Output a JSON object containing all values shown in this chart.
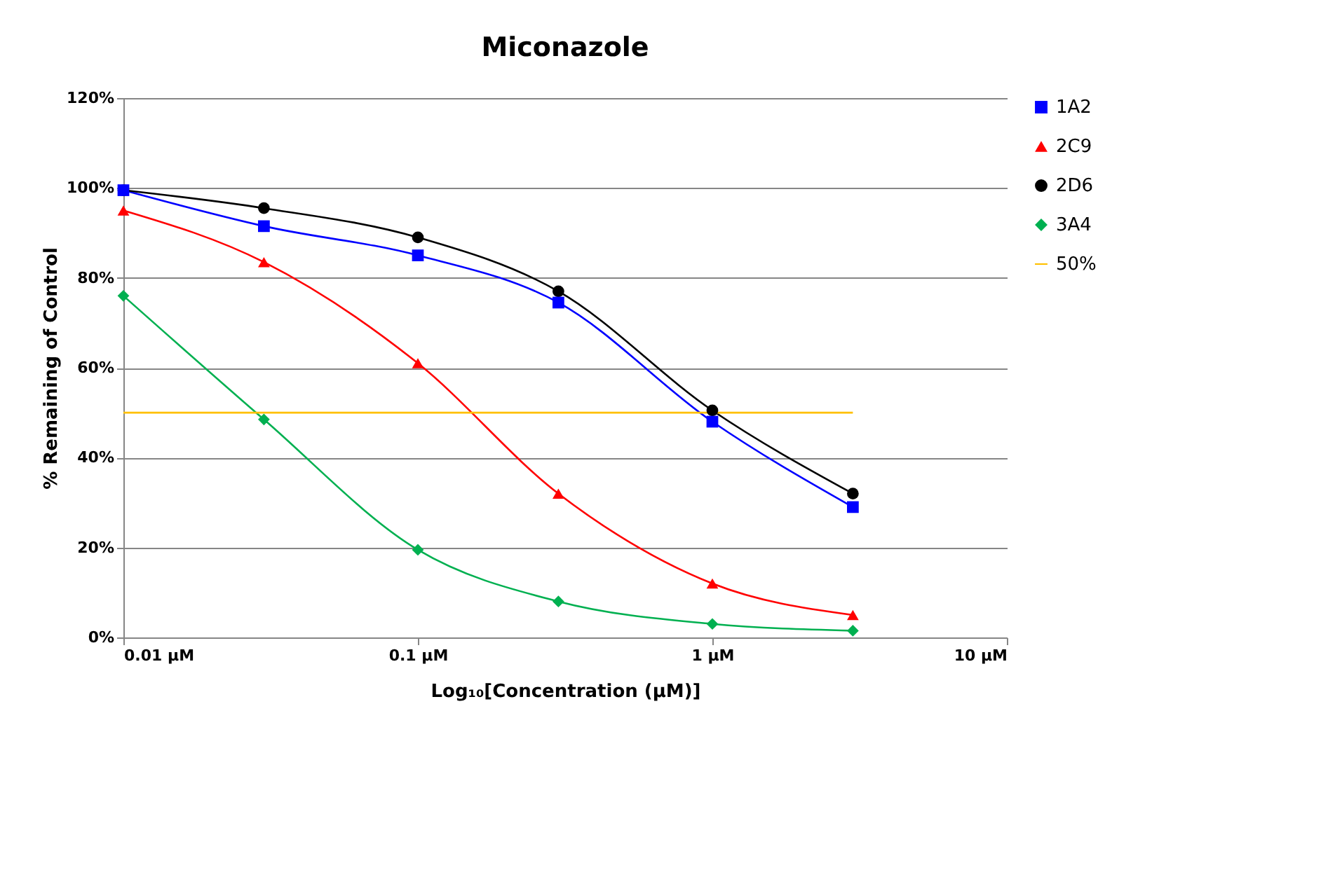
{
  "chart_data": {
    "type": "line",
    "title": "Miconazole",
    "xlabel": "Log₁₀[Concentration (µM)]",
    "ylabel": "% Remaining of Control",
    "log": "x",
    "xlim": [
      0.01,
      10
    ],
    "xticks": [
      {
        "value": 0.01,
        "label": "0.01 µM"
      },
      {
        "value": 0.1,
        "label": "0.1 µM"
      },
      {
        "value": 1,
        "label": "1 µM"
      },
      {
        "value": 10,
        "label": "10 µM"
      }
    ],
    "ylim": [
      0,
      120
    ],
    "yticks": [
      {
        "value": 0,
        "label": "0%"
      },
      {
        "value": 20,
        "label": "20%"
      },
      {
        "value": 40,
        "label": "40%"
      },
      {
        "value": 60,
        "label": "60%"
      },
      {
        "value": 80,
        "label": "80%"
      },
      {
        "value": 100,
        "label": "100%"
      },
      {
        "value": 120,
        "label": "120%"
      }
    ],
    "grid": "y",
    "legend": "right",
    "x": [
      0.01,
      0.03,
      0.1,
      0.3,
      1,
      3
    ],
    "series": [
      {
        "name": "1A2",
        "color": "#0000ff",
        "marker": "square",
        "values": [
          99.5,
          91.5,
          85,
          74.5,
          48,
          29
        ]
      },
      {
        "name": "2C9",
        "color": "#ff0000",
        "marker": "triangle",
        "values": [
          95,
          83.5,
          61,
          32,
          12,
          5
        ]
      },
      {
        "name": "2D6",
        "color": "#000000",
        "marker": "circle",
        "values": [
          99.5,
          95.5,
          89,
          77,
          50.5,
          32
        ]
      },
      {
        "name": "3A4",
        "color": "#00b050",
        "marker": "diamond",
        "values": [
          76,
          48.5,
          19.5,
          8,
          3,
          1.5
        ]
      },
      {
        "name": "50%",
        "color": "#ffc000",
        "marker": "none",
        "x": [
          0.01,
          3
        ],
        "values": [
          50,
          50
        ]
      }
    ]
  }
}
